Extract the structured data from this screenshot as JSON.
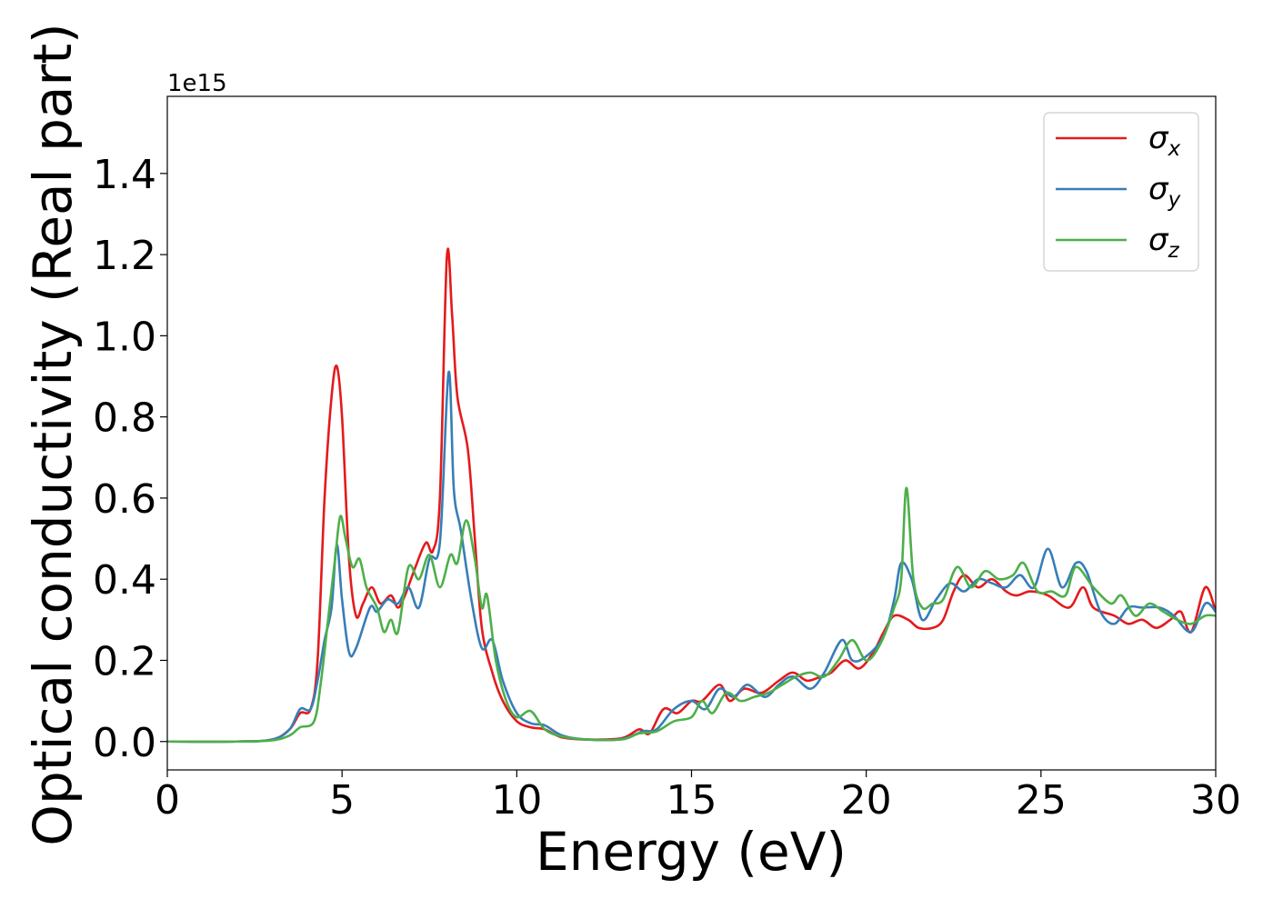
{
  "chart_data": {
    "type": "line",
    "title": "",
    "xlabel": "Energy (eV)",
    "ylabel": "Optical conductivity (Real part)",
    "y_offset_text": "1e15",
    "xlim": [
      0,
      30
    ],
    "ylim": [
      -0.07,
      1.59
    ],
    "xticks": [
      0,
      5,
      10,
      15,
      20,
      25,
      30
    ],
    "yticks": [
      0.0,
      0.2,
      0.4,
      0.6,
      0.8,
      1.0,
      1.2,
      1.4
    ],
    "ytick_labels": [
      "0.0",
      "0.2",
      "0.4",
      "0.6",
      "0.8",
      "1.0",
      "1.2",
      "1.4"
    ],
    "grid": false,
    "legend_position": "top-right",
    "series": [
      {
        "name": "σ",
        "subscript": "x",
        "color": "#e41a1c",
        "points": [
          [
            0,
            0
          ],
          [
            2,
            0
          ],
          [
            3,
            0.005
          ],
          [
            3.5,
            0.03
          ],
          [
            3.8,
            0.07
          ],
          [
            4.1,
            0.08
          ],
          [
            4.3,
            0.2
          ],
          [
            4.5,
            0.6
          ],
          [
            4.7,
            0.85
          ],
          [
            4.85,
            0.925
          ],
          [
            5.0,
            0.8
          ],
          [
            5.2,
            0.45
          ],
          [
            5.4,
            0.31
          ],
          [
            5.6,
            0.34
          ],
          [
            5.85,
            0.38
          ],
          [
            6.1,
            0.34
          ],
          [
            6.4,
            0.36
          ],
          [
            6.6,
            0.33
          ],
          [
            6.8,
            0.36
          ],
          [
            7.1,
            0.43
          ],
          [
            7.4,
            0.49
          ],
          [
            7.6,
            0.47
          ],
          [
            7.8,
            0.6
          ],
          [
            8.0,
            1.195
          ],
          [
            8.15,
            1.05
          ],
          [
            8.3,
            0.85
          ],
          [
            8.6,
            0.72
          ],
          [
            8.8,
            0.5
          ],
          [
            9.0,
            0.28
          ],
          [
            9.3,
            0.17
          ],
          [
            9.6,
            0.1
          ],
          [
            10.0,
            0.05
          ],
          [
            10.4,
            0.035
          ],
          [
            10.8,
            0.03
          ],
          [
            11.3,
            0.01
          ],
          [
            12,
            0.005
          ],
          [
            13,
            0.008
          ],
          [
            13.5,
            0.03
          ],
          [
            13.8,
            0.02
          ],
          [
            14.2,
            0.08
          ],
          [
            14.6,
            0.07
          ],
          [
            15,
            0.1
          ],
          [
            15.3,
            0.1
          ],
          [
            15.8,
            0.14
          ],
          [
            16.1,
            0.1
          ],
          [
            16.5,
            0.13
          ],
          [
            17,
            0.12
          ],
          [
            17.5,
            0.15
          ],
          [
            17.9,
            0.17
          ],
          [
            18.3,
            0.15
          ],
          [
            18.7,
            0.16
          ],
          [
            19.0,
            0.17
          ],
          [
            19.4,
            0.2
          ],
          [
            19.8,
            0.18
          ],
          [
            20.2,
            0.22
          ],
          [
            20.5,
            0.27
          ],
          [
            20.8,
            0.31
          ],
          [
            21.2,
            0.3
          ],
          [
            21.5,
            0.28
          ],
          [
            21.9,
            0.28
          ],
          [
            22.2,
            0.3
          ],
          [
            22.5,
            0.37
          ],
          [
            22.8,
            0.41
          ],
          [
            23.2,
            0.38
          ],
          [
            23.6,
            0.4
          ],
          [
            24.0,
            0.37
          ],
          [
            24.3,
            0.36
          ],
          [
            24.7,
            0.37
          ],
          [
            25.2,
            0.36
          ],
          [
            25.8,
            0.33
          ],
          [
            26.2,
            0.38
          ],
          [
            26.5,
            0.33
          ],
          [
            27.1,
            0.31
          ],
          [
            27.5,
            0.29
          ],
          [
            27.9,
            0.3
          ],
          [
            28.3,
            0.28
          ],
          [
            28.7,
            0.3
          ],
          [
            29.0,
            0.32
          ],
          [
            29.3,
            0.27
          ],
          [
            29.7,
            0.38
          ],
          [
            30,
            0.32
          ]
        ]
      },
      {
        "name": "σ",
        "subscript": "y",
        "color": "#377eb8",
        "points": [
          [
            0,
            0
          ],
          [
            2,
            0
          ],
          [
            3,
            0.005
          ],
          [
            3.5,
            0.03
          ],
          [
            3.8,
            0.08
          ],
          [
            4.1,
            0.08
          ],
          [
            4.3,
            0.15
          ],
          [
            4.5,
            0.25
          ],
          [
            4.7,
            0.33
          ],
          [
            4.85,
            0.485
          ],
          [
            5.0,
            0.35
          ],
          [
            5.2,
            0.22
          ],
          [
            5.4,
            0.23
          ],
          [
            5.8,
            0.33
          ],
          [
            6.0,
            0.32
          ],
          [
            6.3,
            0.35
          ],
          [
            6.6,
            0.34
          ],
          [
            6.9,
            0.38
          ],
          [
            7.2,
            0.33
          ],
          [
            7.5,
            0.45
          ],
          [
            7.8,
            0.49
          ],
          [
            8.05,
            0.91
          ],
          [
            8.2,
            0.62
          ],
          [
            8.4,
            0.52
          ],
          [
            8.7,
            0.35
          ],
          [
            9.0,
            0.23
          ],
          [
            9.3,
            0.25
          ],
          [
            9.6,
            0.15
          ],
          [
            10.0,
            0.07
          ],
          [
            10.4,
            0.045
          ],
          [
            10.8,
            0.04
          ],
          [
            11.3,
            0.015
          ],
          [
            12,
            0.005
          ],
          [
            13,
            0.006
          ],
          [
            13.6,
            0.025
          ],
          [
            14,
            0.03
          ],
          [
            14.5,
            0.08
          ],
          [
            15,
            0.1
          ],
          [
            15.4,
            0.08
          ],
          [
            15.8,
            0.13
          ],
          [
            16.2,
            0.11
          ],
          [
            16.6,
            0.14
          ],
          [
            17.1,
            0.11
          ],
          [
            17.5,
            0.14
          ],
          [
            17.9,
            0.16
          ],
          [
            18.4,
            0.13
          ],
          [
            18.8,
            0.17
          ],
          [
            19.3,
            0.25
          ],
          [
            19.6,
            0.2
          ],
          [
            20.0,
            0.21
          ],
          [
            20.5,
            0.26
          ],
          [
            20.8,
            0.35
          ],
          [
            21.0,
            0.44
          ],
          [
            21.3,
            0.4
          ],
          [
            21.6,
            0.3
          ],
          [
            22.0,
            0.35
          ],
          [
            22.4,
            0.39
          ],
          [
            22.8,
            0.37
          ],
          [
            23.2,
            0.4
          ],
          [
            23.6,
            0.39
          ],
          [
            24.0,
            0.38
          ],
          [
            24.4,
            0.41
          ],
          [
            24.8,
            0.38
          ],
          [
            25.2,
            0.475
          ],
          [
            25.6,
            0.38
          ],
          [
            26.0,
            0.44
          ],
          [
            26.3,
            0.42
          ],
          [
            26.7,
            0.32
          ],
          [
            27.1,
            0.29
          ],
          [
            27.5,
            0.33
          ],
          [
            27.9,
            0.33
          ],
          [
            28.4,
            0.33
          ],
          [
            28.8,
            0.31
          ],
          [
            29.3,
            0.27
          ],
          [
            29.7,
            0.34
          ],
          [
            30,
            0.32
          ]
        ]
      },
      {
        "name": "σ",
        "subscript": "z",
        "color": "#4daf4a",
        "points": [
          [
            0,
            0
          ],
          [
            2,
            0
          ],
          [
            3,
            0.003
          ],
          [
            3.5,
            0.015
          ],
          [
            3.8,
            0.035
          ],
          [
            4.2,
            0.05
          ],
          [
            4.4,
            0.15
          ],
          [
            4.6,
            0.3
          ],
          [
            4.8,
            0.45
          ],
          [
            4.95,
            0.555
          ],
          [
            5.1,
            0.5
          ],
          [
            5.3,
            0.43
          ],
          [
            5.5,
            0.45
          ],
          [
            5.7,
            0.38
          ],
          [
            6.0,
            0.33
          ],
          [
            6.2,
            0.27
          ],
          [
            6.4,
            0.3
          ],
          [
            6.6,
            0.27
          ],
          [
            6.9,
            0.43
          ],
          [
            7.2,
            0.4
          ],
          [
            7.5,
            0.46
          ],
          [
            7.8,
            0.38
          ],
          [
            8.1,
            0.46
          ],
          [
            8.3,
            0.44
          ],
          [
            8.55,
            0.545
          ],
          [
            8.8,
            0.45
          ],
          [
            9.0,
            0.33
          ],
          [
            9.15,
            0.36
          ],
          [
            9.4,
            0.2
          ],
          [
            9.7,
            0.1
          ],
          [
            10.0,
            0.06
          ],
          [
            10.4,
            0.075
          ],
          [
            10.8,
            0.03
          ],
          [
            11.3,
            0.012
          ],
          [
            12,
            0.005
          ],
          [
            13,
            0.005
          ],
          [
            13.5,
            0.02
          ],
          [
            14,
            0.025
          ],
          [
            14.5,
            0.05
          ],
          [
            15,
            0.06
          ],
          [
            15.3,
            0.1
          ],
          [
            15.6,
            0.07
          ],
          [
            16.0,
            0.12
          ],
          [
            16.4,
            0.1
          ],
          [
            16.8,
            0.11
          ],
          [
            17.2,
            0.12
          ],
          [
            17.6,
            0.14
          ],
          [
            18.0,
            0.16
          ],
          [
            18.4,
            0.17
          ],
          [
            18.8,
            0.16
          ],
          [
            19.2,
            0.2
          ],
          [
            19.6,
            0.25
          ],
          [
            20.0,
            0.2
          ],
          [
            20.4,
            0.24
          ],
          [
            20.8,
            0.33
          ],
          [
            21.0,
            0.4
          ],
          [
            21.15,
            0.625
          ],
          [
            21.35,
            0.4
          ],
          [
            21.6,
            0.33
          ],
          [
            21.9,
            0.34
          ],
          [
            22.2,
            0.35
          ],
          [
            22.6,
            0.43
          ],
          [
            23.0,
            0.38
          ],
          [
            23.4,
            0.42
          ],
          [
            23.8,
            0.4
          ],
          [
            24.2,
            0.41
          ],
          [
            24.5,
            0.44
          ],
          [
            24.9,
            0.37
          ],
          [
            25.3,
            0.37
          ],
          [
            25.7,
            0.36
          ],
          [
            26.0,
            0.43
          ],
          [
            26.5,
            0.38
          ],
          [
            27.0,
            0.34
          ],
          [
            27.3,
            0.36
          ],
          [
            27.7,
            0.31
          ],
          [
            28.1,
            0.34
          ],
          [
            28.5,
            0.32
          ],
          [
            28.9,
            0.3
          ],
          [
            29.3,
            0.29
          ],
          [
            29.7,
            0.31
          ],
          [
            30,
            0.31
          ]
        ]
      }
    ]
  }
}
